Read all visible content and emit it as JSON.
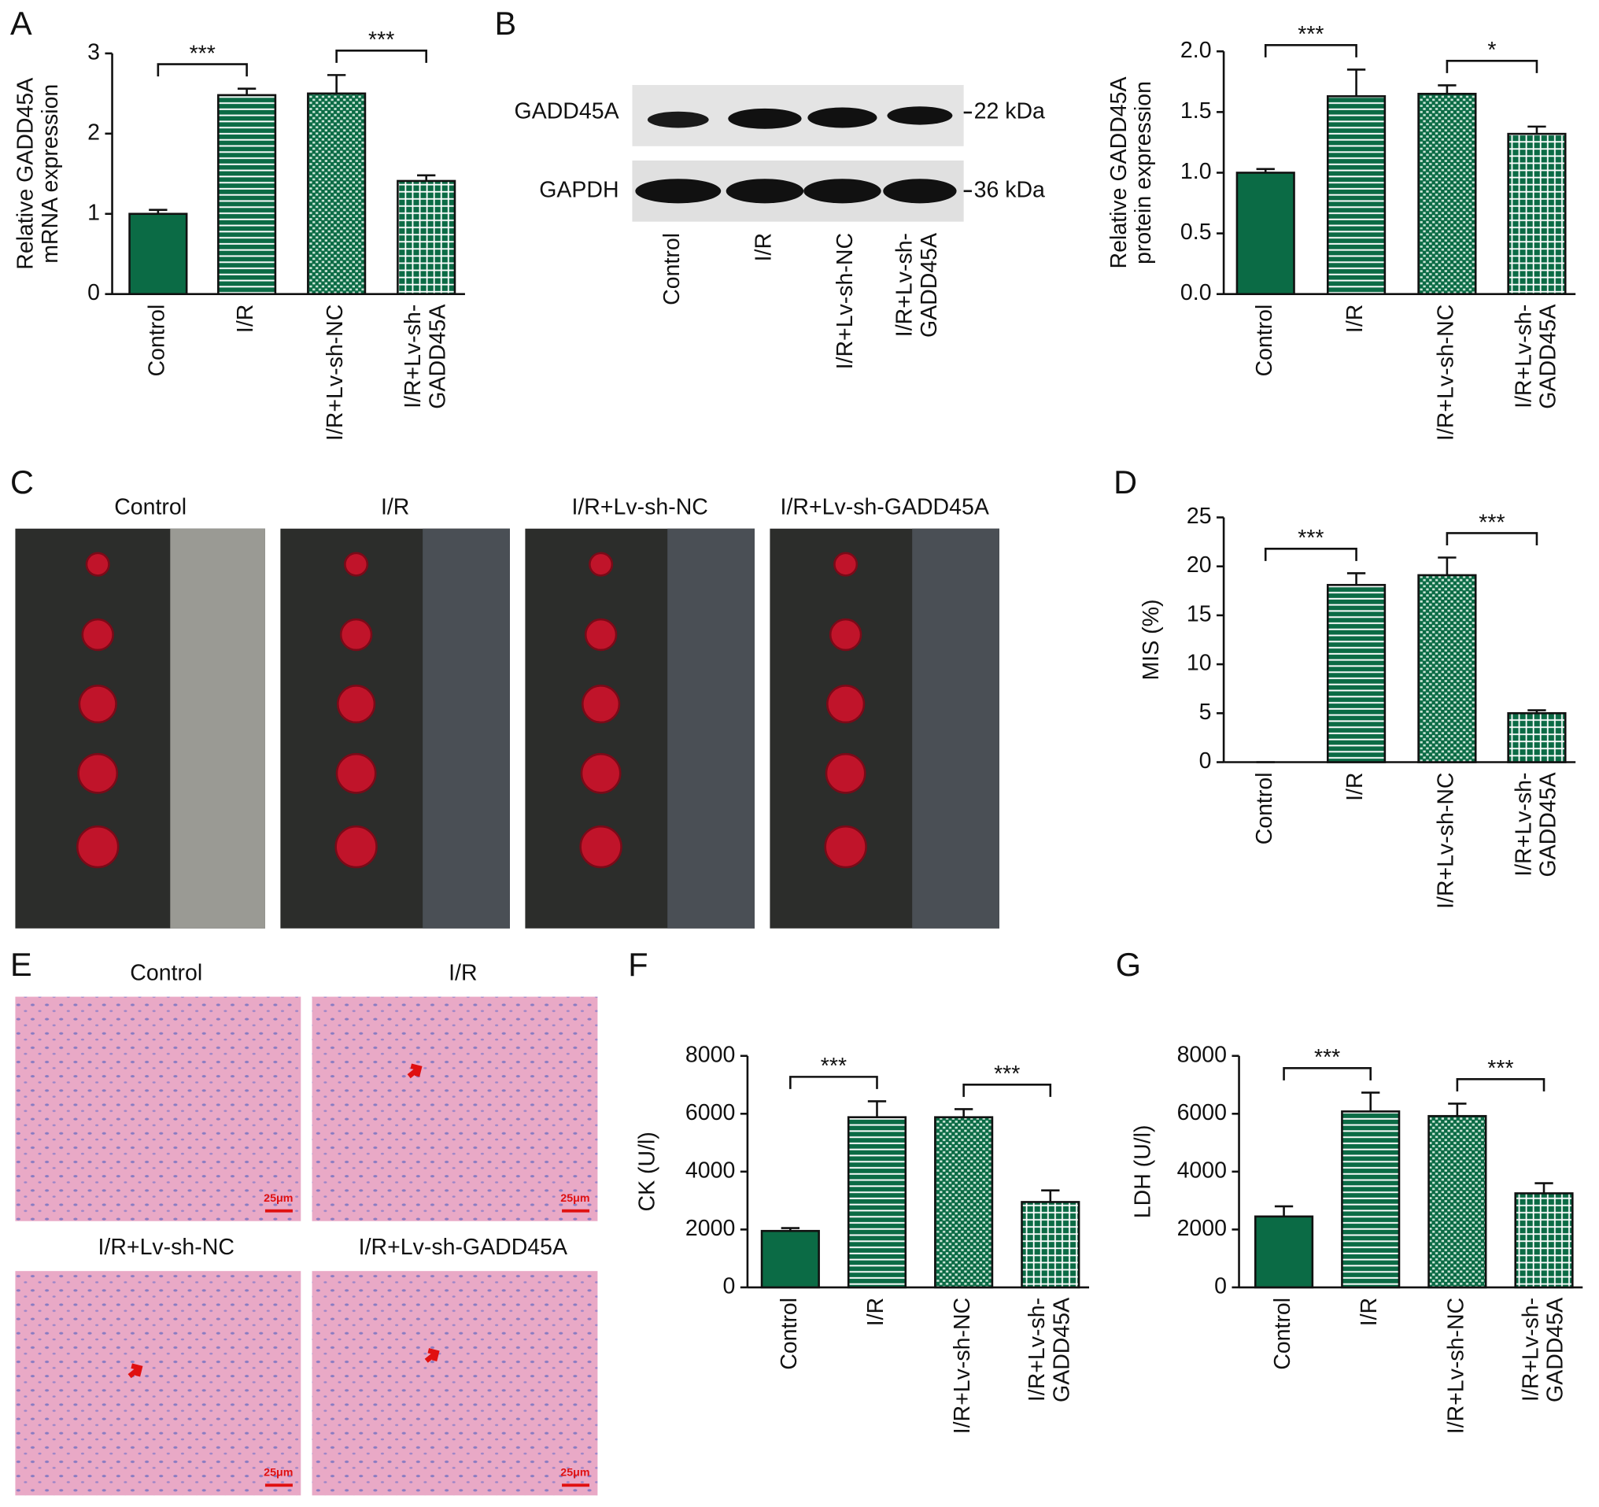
{
  "chart_data": [
    {
      "type": "bar",
      "panel": "A",
      "y_label": "Relative GADD45A\nmRNA expression",
      "categories": [
        "Control",
        "I/R",
        "I/R+Lv-sh-NC",
        "I/R+Lv-sh-\nGADD45A"
      ],
      "values": [
        1.0,
        2.48,
        2.5,
        1.41
      ],
      "errors": [
        0.05,
        0.08,
        0.23,
        0.07
      ],
      "color": "#0b6b45",
      "fills": [
        "solid",
        "horizontal-stripes",
        "dots",
        "grid"
      ],
      "ylim": [
        0,
        3
      ],
      "yticks": [
        0,
        1,
        2,
        3
      ],
      "significance": [
        {
          "from": 0,
          "to": 1,
          "label": "***"
        },
        {
          "from": 2,
          "to": 3,
          "label": "***"
        }
      ]
    },
    {
      "type": "bar",
      "y_label": "Relative GADD45A\nprotein expression",
      "categories": [
        "Control",
        "I/R",
        "I/R+Lv-sh-NC",
        "I/R+Lv-sh-\nGADD45A"
      ],
      "values": [
        1.0,
        1.63,
        1.65,
        1.32
      ],
      "errors": [
        0.03,
        0.22,
        0.07,
        0.06
      ],
      "color": "#0b6b45",
      "fills": [
        "solid",
        "horizontal-stripes",
        "dots",
        "grid"
      ],
      "ylim": [
        0,
        2
      ],
      "yticks": [
        {
          "value": 0,
          "label": "0.0"
        },
        {
          "value": 0.5,
          "label": "0.5"
        },
        {
          "value": 1,
          "label": "1.0"
        },
        {
          "value": 1.5,
          "label": "1.5"
        },
        {
          "value": 2,
          "label": "2.0"
        }
      ],
      "significance": [
        {
          "from": 0,
          "to": 1,
          "label": "***"
        },
        {
          "from": 2,
          "to": 3,
          "label": "*"
        }
      ]
    },
    {
      "type": "bar",
      "panel": "D",
      "y_label": "MIS (%)",
      "categories": [
        "Control",
        "I/R",
        "I/R+Lv-sh-NC",
        "I/R+Lv-sh-\nGADD45A"
      ],
      "values": [
        0,
        18.1,
        19.1,
        5.0
      ],
      "errors": [
        0,
        1.2,
        1.8,
        0.3
      ],
      "color": "#0b6b45",
      "fills": [
        "solid",
        "horizontal-stripes",
        "dots",
        "grid"
      ],
      "ylim": [
        0,
        25
      ],
      "yticks": [
        0,
        5,
        10,
        15,
        20,
        25
      ],
      "significance": [
        {
          "from": 0,
          "to": 1,
          "label": "***"
        },
        {
          "from": 2,
          "to": 3,
          "label": "***"
        }
      ]
    },
    {
      "type": "bar",
      "panel": "F",
      "y_label": "CK (U/l)",
      "categories": [
        "Control",
        "I/R",
        "I/R+Lv-sh-NC",
        "I/R+Lv-sh-\nGADD45A"
      ],
      "values": [
        1950,
        5880,
        5880,
        2950
      ],
      "errors": [
        100,
        550,
        280,
        400
      ],
      "color": "#0b6b45",
      "fills": [
        "solid",
        "horizontal-stripes",
        "dots",
        "grid"
      ],
      "ylim": [
        0,
        8000
      ],
      "yticks": [
        0,
        2000,
        4000,
        6000,
        8000
      ],
      "significance": [
        {
          "from": 0,
          "to": 1,
          "label": "***"
        },
        {
          "from": 2,
          "to": 3,
          "label": "***"
        }
      ]
    },
    {
      "type": "bar",
      "panel": "G",
      "y_label": "LDH (U/l)",
      "categories": [
        "Control",
        "I/R",
        "I/R+Lv-sh-NC",
        "I/R+Lv-sh-\nGADD45A"
      ],
      "values": [
        2450,
        6080,
        5920,
        3250
      ],
      "errors": [
        350,
        650,
        430,
        350
      ],
      "color": "#0b6b45",
      "fills": [
        "solid",
        "horizontal-stripes",
        "dots",
        "grid"
      ],
      "ylim": [
        0,
        8000
      ],
      "yticks": [
        0,
        2000,
        4000,
        6000,
        8000
      ],
      "significance": [
        {
          "from": 0,
          "to": 1,
          "label": "***"
        },
        {
          "from": 2,
          "to": 3,
          "label": "***"
        }
      ]
    }
  ],
  "blot": {
    "panel": "B",
    "proteins": [
      "GADD45A",
      "GAPDH"
    ],
    "sizes": [
      "22 kDa",
      "36 kDa"
    ],
    "lanes": [
      "Control",
      "I/R",
      "I/R+Lv-sh-NC",
      "I/R+Lv-sh-\nGADD45A"
    ]
  },
  "photos": {
    "panel": "C",
    "titles": [
      "Control",
      "I/R",
      "I/R+Lv-sh-NC",
      "I/R+Lv-sh-GADD45A"
    ]
  },
  "histology": {
    "panel": "E",
    "titles": [
      "Control",
      "I/R",
      "I/R+Lv-sh-NC",
      "I/R+Lv-sh-GADD45A"
    ],
    "scale_bar": "25μm"
  }
}
